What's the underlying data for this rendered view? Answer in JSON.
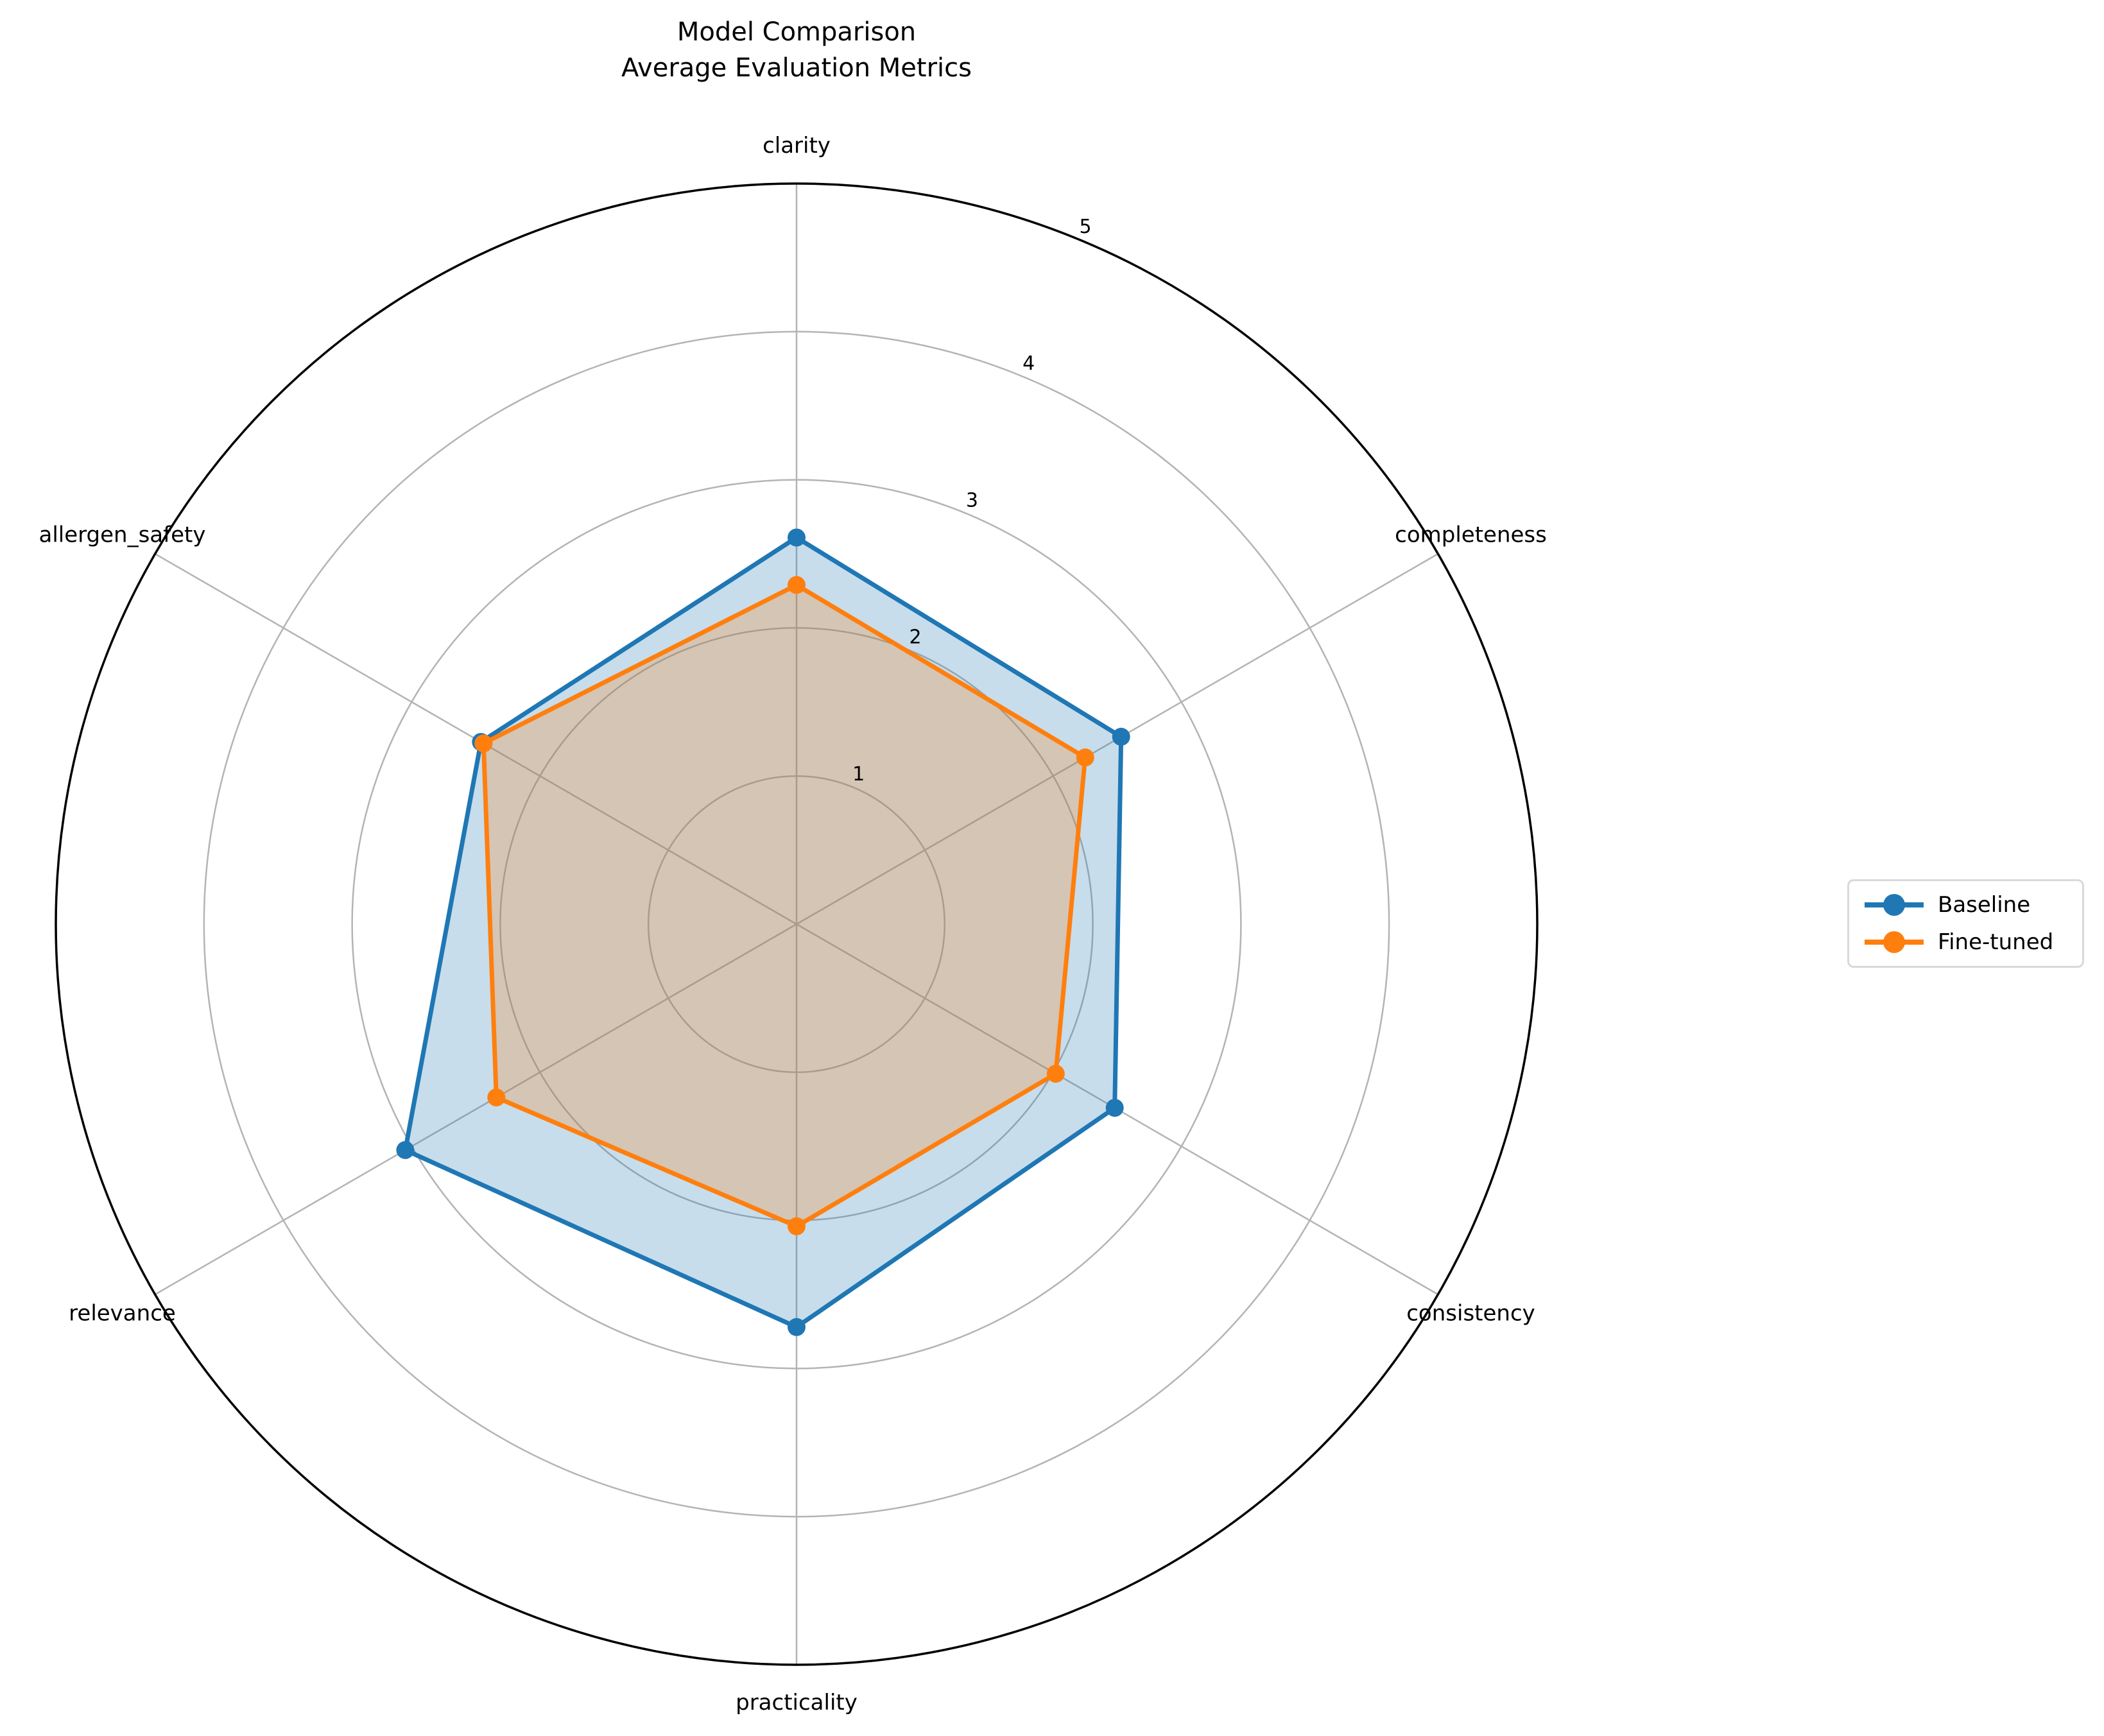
{
  "title": {
    "line1": "Model Comparison",
    "line2": "Average Evaluation Metrics"
  },
  "chart_data": {
    "type": "radar",
    "categories": [
      "clarity",
      "completeness",
      "consistency",
      "practicality",
      "relevance",
      "allergen_safety"
    ],
    "series": [
      {
        "name": "Baseline",
        "color": "#1f77b4",
        "values": [
          2.61,
          2.53,
          2.48,
          2.72,
          3.05,
          2.46
        ]
      },
      {
        "name": "Fine-tuned",
        "color": "#ff7f0e",
        "values": [
          2.29,
          2.25,
          2.02,
          2.04,
          2.34,
          2.44
        ]
      }
    ],
    "r_ticks": [
      1,
      2,
      3,
      4,
      5
    ],
    "r_max": 5,
    "fill_opacity": 0.25,
    "grid_color": "#b4b4b4",
    "spine_color": "#000000",
    "text_color": "#000000",
    "legend_position": "center right",
    "grid": "on"
  }
}
